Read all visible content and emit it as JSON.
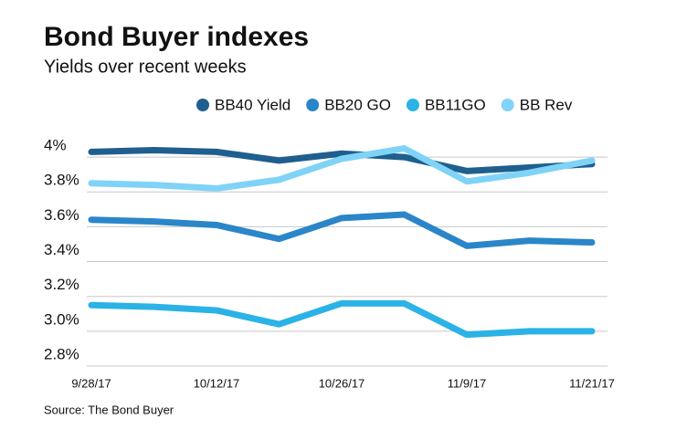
{
  "chart_data": {
    "type": "line",
    "title": "Bond Buyer indexes",
    "subtitle": "Yields over recent weeks",
    "source": "Source: The Bond Buyer",
    "categories": [
      "9/28/17",
      null,
      "10/12/17",
      null,
      "10/26/17",
      null,
      "11/9/17",
      null,
      "11/21/17"
    ],
    "series": [
      {
        "name": "BB40 Yield",
        "color": "#1f5f8f",
        "values": [
          4.03,
          4.04,
          4.03,
          3.98,
          4.02,
          4.0,
          3.92,
          3.94,
          3.96
        ]
      },
      {
        "name": "BB20 GO",
        "color": "#2a86c8",
        "values": [
          3.64,
          3.63,
          3.61,
          3.53,
          3.65,
          3.67,
          3.49,
          3.52,
          3.51
        ]
      },
      {
        "name": "BB11GO",
        "color": "#2bb2e6",
        "values": [
          3.15,
          3.14,
          3.12,
          3.04,
          3.16,
          3.16,
          2.98,
          3.0,
          3.0
        ]
      },
      {
        "name": "BB Rev",
        "color": "#7fd3f7",
        "values": [
          3.85,
          3.84,
          3.82,
          3.87,
          3.99,
          4.05,
          3.86,
          3.91,
          3.98
        ]
      }
    ],
    "ylim": [
      2.8,
      4.1
    ],
    "yticks": [
      {
        "value": 4,
        "label": "4%"
      },
      {
        "value": 3.8,
        "label": "3.8%"
      },
      {
        "value": 3.6,
        "label": "3.6%"
      },
      {
        "value": 3.4,
        "label": "3.4%"
      },
      {
        "value": 3.2,
        "label": "3.2%"
      },
      {
        "value": 3.0,
        "label": "3.0%"
      },
      {
        "value": 2.8,
        "label": "2.8%"
      }
    ],
    "grid": true
  }
}
